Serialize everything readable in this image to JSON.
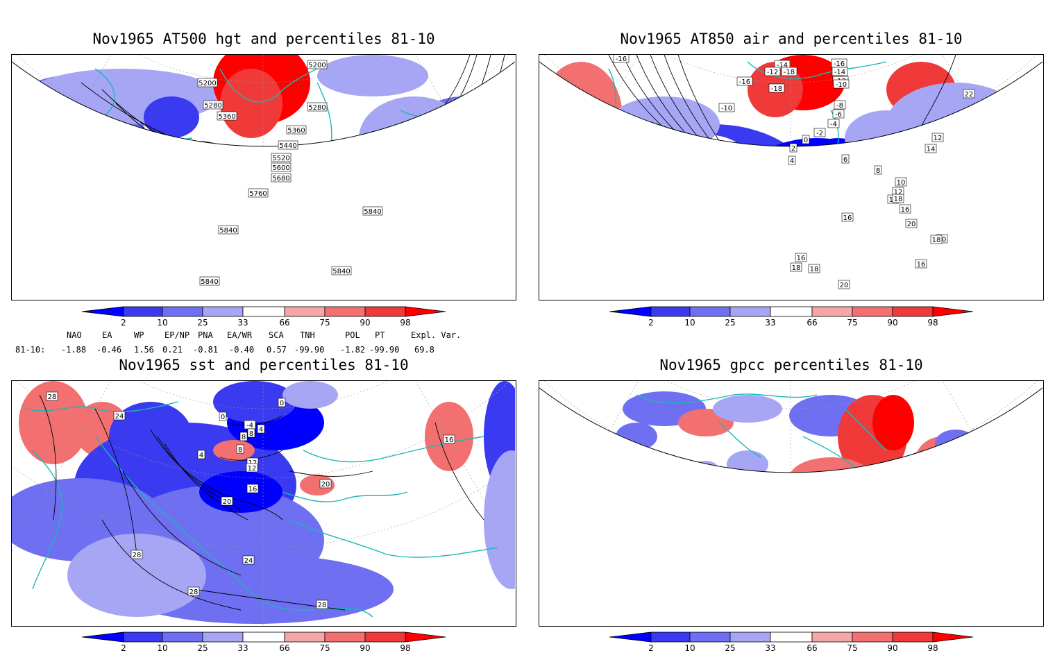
{
  "panels": [
    {
      "id": "hgt",
      "title": "Nov1965 AT500 hgt and percentiles 81-10",
      "contour_labels": [
        "5200",
        "5200",
        "5280",
        "5360",
        "5280",
        "5360",
        "5440",
        "5520",
        "5600",
        "5680",
        "5760",
        "5840",
        "5840",
        "5840",
        "5840"
      ]
    },
    {
      "id": "air",
      "title": "Nov1965 AT850 air and percentiles 81-10",
      "contour_labels": [
        "-16",
        "-14",
        "-12",
        "-18",
        "-16",
        "-18",
        "-16",
        "-14",
        "-12",
        "-10",
        "-10",
        "-8",
        "-6",
        "-4",
        "-2",
        "0",
        "2",
        "4",
        "6",
        "8",
        "10",
        "12",
        "14",
        "16",
        "16",
        "18",
        "20",
        "22",
        "12",
        "14",
        "10",
        "16",
        "18",
        "18",
        "20",
        "18",
        "16"
      ]
    },
    {
      "id": "sst",
      "title": "Nov1965 sst and percentiles 81-10",
      "contour_labels": [
        "28",
        "24",
        "12",
        "8",
        "0",
        "0",
        "-4",
        "4",
        "8",
        "4",
        "8",
        "12",
        "16",
        "20",
        "20",
        "24",
        "28",
        "28",
        "28",
        "16"
      ]
    },
    {
      "id": "gpcc",
      "title": "Nov1965 gpcc percentiles 81-10",
      "contour_labels": []
    }
  ],
  "colorbar": {
    "labels": [
      "2",
      "10",
      "25",
      "33",
      "66",
      "75",
      "90",
      "98"
    ],
    "colors": [
      "#0000ff",
      "#3a3af0",
      "#6f6ff2",
      "#a6a6f5",
      "#ffffff",
      "#f5a6a6",
      "#f27070",
      "#f03a3a",
      "#ff0000"
    ]
  },
  "indices": {
    "headers": [
      "NAO",
      "EA",
      "WP",
      "EP/NP",
      "PNA",
      "EA/WR",
      "SCA",
      "TNH",
      "POL",
      "PT",
      "Expl. Var."
    ],
    "row_label": "81-10:",
    "values": [
      "-1.88",
      "-0.46",
      "1.56",
      "0.21",
      "-0.81",
      "-0.40",
      "0.57",
      "-99.90",
      "-1.82",
      "-99.90",
      "69.8"
    ]
  }
}
